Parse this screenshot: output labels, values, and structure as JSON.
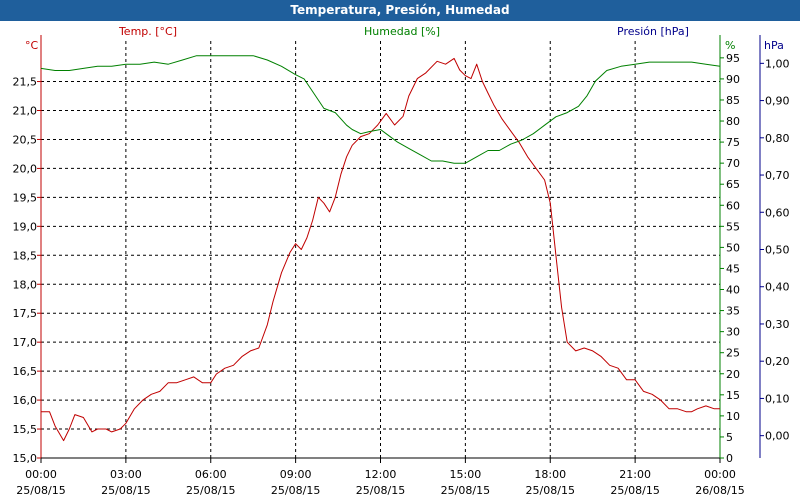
{
  "window": {
    "title": "Temperatura, Presión, Humedad"
  },
  "chart_data": {
    "type": "line",
    "title": "Temperatura, Presión, Humedad",
    "x_ticks": [
      {
        "time": "00:00",
        "date": "25/08/15"
      },
      {
        "time": "03:00",
        "date": "25/08/15"
      },
      {
        "time": "06:00",
        "date": "25/08/15"
      },
      {
        "time": "09:00",
        "date": "25/08/15"
      },
      {
        "time": "12:00",
        "date": "25/08/15"
      },
      {
        "time": "15:00",
        "date": "25/08/15"
      },
      {
        "time": "18:00",
        "date": "25/08/15"
      },
      {
        "time": "21:00",
        "date": "25/08/15"
      },
      {
        "time": "00:00",
        "date": "26/08/15"
      }
    ],
    "xlim_hours": [
      0,
      24
    ],
    "grid": true,
    "axes": {
      "temperature": {
        "unit": "°C",
        "series_label": "Temp. [°C]",
        "ylim": [
          15.0,
          22.2
        ],
        "ticks": [
          "15,0",
          "15,5",
          "16,0",
          "16,5",
          "17,0",
          "17,5",
          "18,0",
          "18,5",
          "19,0",
          "19,5",
          "20,0",
          "20,5",
          "21,0",
          "21,5"
        ],
        "color": "#c00000"
      },
      "humidity": {
        "unit": "%",
        "series_label": "Humedad [%]",
        "ylim": [
          0,
          99
        ],
        "ticks": [
          "0",
          "5",
          "10",
          "15",
          "20",
          "25",
          "30",
          "35",
          "40",
          "45",
          "50",
          "55",
          "60",
          "65",
          "70",
          "75",
          "80",
          "85",
          "90",
          "95"
        ],
        "color": "#008000"
      },
      "pressure": {
        "unit": "hPa",
        "series_label": "Presión [hPa]",
        "ylim": [
          -0.06,
          1.06
        ],
        "ticks": [
          "0,00",
          "0,10",
          "0,20",
          "0,30",
          "0,40",
          "0,50",
          "0,60",
          "0,70",
          "0,80",
          "0,90",
          "1,00"
        ],
        "color": "#00008b"
      }
    },
    "series": [
      {
        "name": "Temp. [°C]",
        "axis": "temperature",
        "color": "#c00000",
        "x": [
          0,
          0.3,
          0.5,
          0.8,
          1.0,
          1.2,
          1.5,
          1.8,
          2.0,
          2.3,
          2.5,
          2.8,
          3.0,
          3.3,
          3.6,
          3.9,
          4.2,
          4.5,
          4.8,
          5.1,
          5.4,
          5.7,
          6.0,
          6.2,
          6.5,
          6.8,
          7.1,
          7.4,
          7.7,
          8.0,
          8.2,
          8.5,
          8.8,
          9.0,
          9.2,
          9.4,
          9.6,
          9.8,
          10.0,
          10.2,
          10.4,
          10.6,
          10.8,
          11.0,
          11.3,
          11.6,
          11.9,
          12.2,
          12.5,
          12.8,
          13.0,
          13.3,
          13.6,
          14.0,
          14.3,
          14.6,
          14.8,
          15.0,
          15.2,
          15.4,
          15.6,
          15.8,
          16.0,
          16.3,
          16.6,
          16.9,
          17.2,
          17.5,
          17.8,
          18.0,
          18.2,
          18.4,
          18.6,
          18.9,
          19.2,
          19.5,
          19.8,
          20.1,
          20.4,
          20.7,
          21.0,
          21.3,
          21.6,
          21.9,
          22.2,
          22.5,
          22.8,
          23.0,
          23.2,
          23.5,
          23.8,
          24.0
        ],
        "y": [
          15.8,
          15.8,
          15.55,
          15.3,
          15.5,
          15.75,
          15.7,
          15.45,
          15.5,
          15.5,
          15.45,
          15.5,
          15.6,
          15.85,
          16.0,
          16.1,
          16.15,
          16.3,
          16.3,
          16.35,
          16.4,
          16.3,
          16.3,
          16.45,
          16.55,
          16.6,
          16.75,
          16.85,
          16.9,
          17.3,
          17.7,
          18.2,
          18.55,
          18.7,
          18.6,
          18.8,
          19.1,
          19.5,
          19.4,
          19.25,
          19.5,
          19.9,
          20.2,
          20.4,
          20.55,
          20.6,
          20.75,
          20.95,
          20.75,
          20.9,
          21.25,
          21.55,
          21.65,
          21.85,
          21.8,
          21.9,
          21.7,
          21.6,
          21.55,
          21.8,
          21.5,
          21.3,
          21.1,
          20.85,
          20.65,
          20.45,
          20.2,
          20.0,
          19.8,
          19.4,
          18.5,
          17.6,
          17.0,
          16.85,
          16.9,
          16.85,
          16.75,
          16.6,
          16.55,
          16.35,
          16.35,
          16.15,
          16.1,
          16.0,
          15.85,
          15.85,
          15.8,
          15.8,
          15.85,
          15.9,
          15.85,
          15.85
        ]
      },
      {
        "name": "Humedad [%]",
        "axis": "humidity",
        "color": "#008000",
        "x": [
          0,
          0.5,
          1.0,
          1.5,
          2.0,
          2.5,
          3.0,
          3.5,
          4.0,
          4.5,
          5.0,
          5.5,
          6.0,
          6.5,
          7.0,
          7.5,
          8.0,
          8.5,
          9.0,
          9.3,
          9.6,
          10.0,
          10.4,
          10.8,
          11.0,
          11.3,
          11.6,
          12.0,
          12.3,
          12.6,
          13.0,
          13.4,
          13.8,
          14.2,
          14.6,
          15.0,
          15.4,
          15.8,
          16.2,
          16.6,
          17.0,
          17.4,
          17.8,
          18.2,
          18.6,
          19.0,
          19.3,
          19.6,
          20.0,
          20.5,
          21.0,
          21.5,
          22.0,
          22.5,
          23.0,
          23.5,
          24.0
        ],
        "y": [
          92.5,
          92,
          92,
          92.5,
          93,
          93,
          93.5,
          93.5,
          94,
          93.5,
          94.5,
          95.5,
          95.5,
          95.5,
          95.5,
          95.5,
          94.5,
          93,
          91,
          90,
          87,
          83,
          82,
          79,
          78,
          77,
          77.5,
          78,
          76.5,
          75,
          73.5,
          72,
          70.5,
          70.5,
          70,
          70,
          71.5,
          73,
          73,
          74.5,
          75.5,
          77,
          79,
          81,
          82,
          83.5,
          86,
          89.5,
          92,
          93,
          93.5,
          94,
          94,
          94,
          94,
          93.5,
          93
        ]
      }
    ]
  }
}
